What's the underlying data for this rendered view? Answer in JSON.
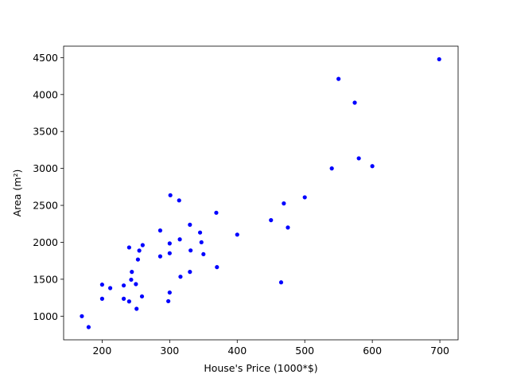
{
  "chart_data": {
    "type": "scatter",
    "title": "",
    "xlabel": "House's Price (1000*$)",
    "ylabel": "Area (m²)",
    "xlim": [
      143,
      727
    ],
    "ylim": [
      680,
      4655
    ],
    "xticks": [
      200,
      300,
      400,
      500,
      600,
      700
    ],
    "yticks": [
      1000,
      1500,
      2000,
      2500,
      3000,
      3500,
      4000,
      4500
    ],
    "grid": false,
    "colors": {
      "points": "#0000ff",
      "axes": "#000000",
      "background": "#ffffff"
    },
    "series": [
      {
        "x": [
          170,
          180,
          200,
          200,
          212,
          232,
          232,
          240,
          240,
          243,
          244,
          250,
          251,
          253,
          255,
          259,
          260,
          286,
          286,
          298,
          300,
          300,
          300,
          301,
          314,
          315,
          316,
          330,
          330,
          331,
          345,
          347,
          350,
          369,
          370,
          400,
          450,
          465,
          469,
          475,
          500,
          540,
          550,
          574,
          580,
          600,
          699
        ],
        "y": [
          1000,
          852,
          1427,
          1236,
          1380,
          1416,
          1236,
          1200,
          1930,
          1494,
          1600,
          1434,
          1100,
          1767,
          1888,
          1268,
          1962,
          2160,
          1810,
          1203,
          1320,
          1852,
          1985,
          2637,
          2567,
          2040,
          1534,
          2238,
          1600,
          1890,
          2132,
          2000,
          1839,
          2400,
          1664,
          2104,
          2300,
          1458,
          2526,
          2200,
          2609,
          3000,
          4212,
          3890,
          3137,
          3031,
          4478
        ]
      }
    ]
  }
}
